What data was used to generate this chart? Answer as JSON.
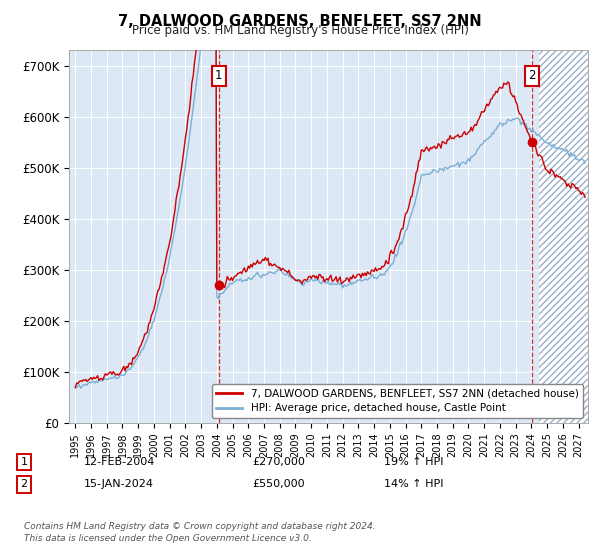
{
  "title": "7, DALWOOD GARDENS, BENFLEET, SS7 2NN",
  "subtitle": "Price paid vs. HM Land Registry's House Price Index (HPI)",
  "legend_line1": "7, DALWOOD GARDENS, BENFLEET, SS7 2NN (detached house)",
  "legend_line2": "HPI: Average price, detached house, Castle Point",
  "annotation1_label": "1",
  "annotation1_date": "12-FEB-2004",
  "annotation1_price": 270000,
  "annotation1_hpi": "19% ↑ HPI",
  "annotation2_label": "2",
  "annotation2_date": "15-JAN-2024",
  "annotation2_price": 550000,
  "annotation2_hpi": "14% ↑ HPI",
  "footer": "Contains HM Land Registry data © Crown copyright and database right 2024.\nThis data is licensed under the Open Government Licence v3.0.",
  "hpi_color": "#7bafd4",
  "price_color": "#cc0000",
  "sale_marker_color": "#cc0000",
  "bg_color": "#dce8f5",
  "ylim": [
    0,
    730000
  ],
  "yticks": [
    0,
    100000,
    200000,
    300000,
    400000,
    500000,
    600000,
    700000
  ],
  "ytick_labels": [
    "£0",
    "£100K",
    "£200K",
    "£300K",
    "£400K",
    "£500K",
    "£600K",
    "£700K"
  ]
}
